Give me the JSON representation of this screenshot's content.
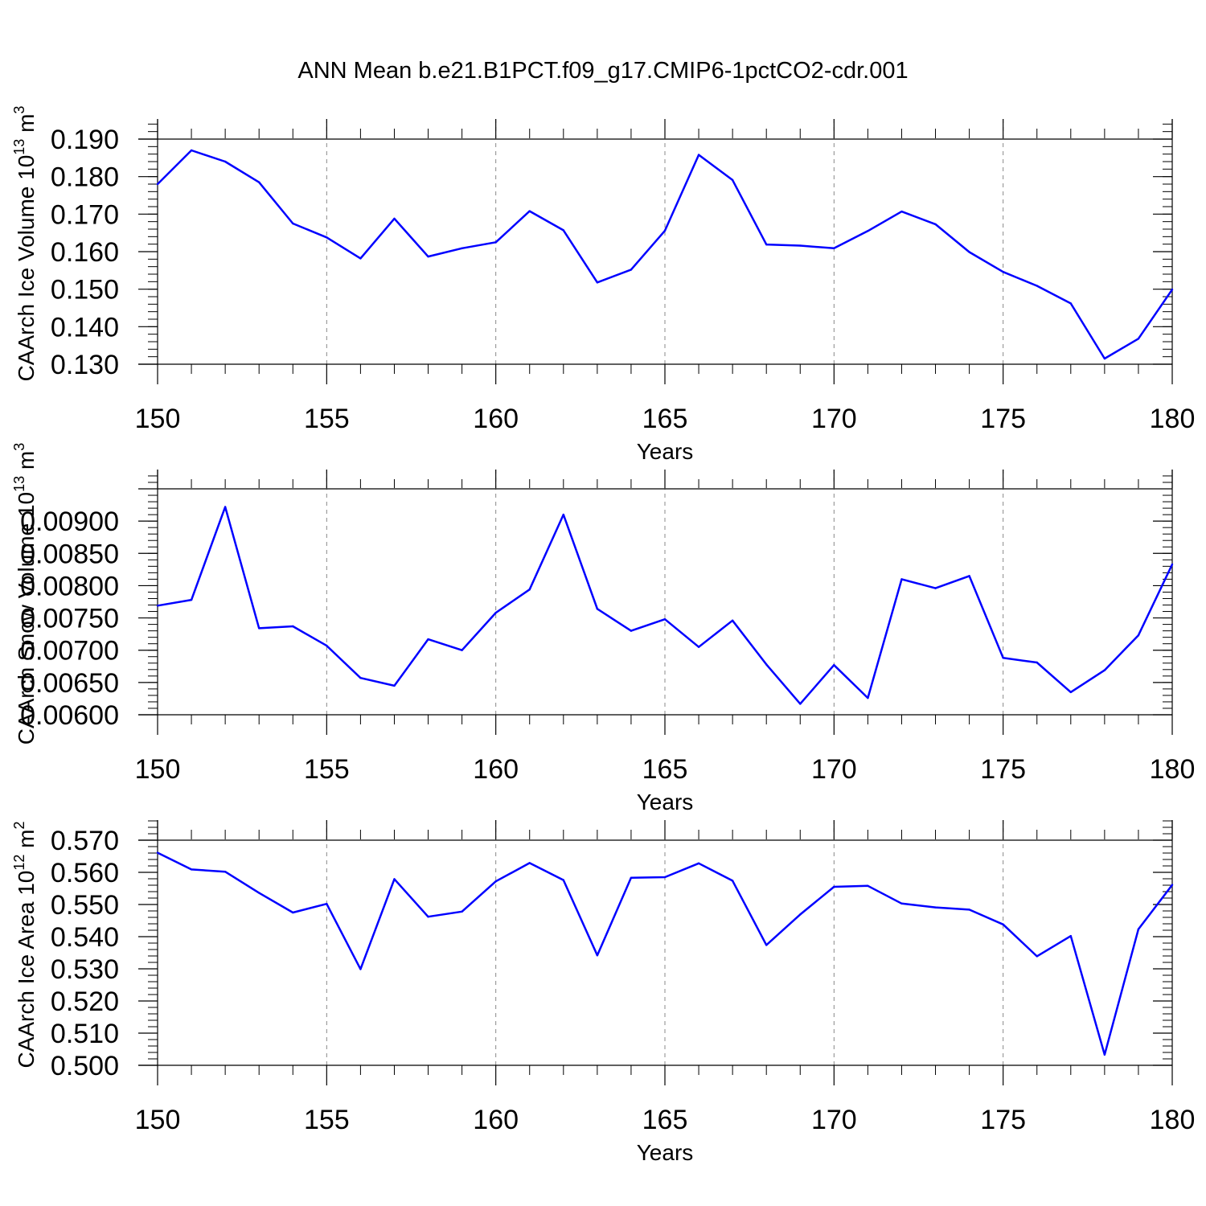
{
  "title": "ANN Mean b.e21.B1PCT.f09_g17.CMIP6-1pctCO2-cdr.001",
  "colors": {
    "line": "#0000ff",
    "axis": "#000000",
    "grid": "#888888"
  },
  "chart_data": [
    {
      "type": "line",
      "xlabel": "Years",
      "ylabel_main": "CAArch Ice Volume 10",
      "ylabel_exp": "13",
      "ylabel_unit": " m",
      "ylabel_unit_exp": "3",
      "xlim": [
        150,
        180
      ],
      "ylim": [
        0.13,
        0.19
      ],
      "x_ticks": [
        150,
        155,
        160,
        165,
        170,
        175,
        180
      ],
      "x_tick_labels": [
        "150",
        "155",
        "160",
        "165",
        "170",
        "175",
        "180"
      ],
      "y_ticks": [
        0.13,
        0.14,
        0.15,
        0.16,
        0.17,
        0.18,
        0.19
      ],
      "y_tick_labels": [
        "0.130",
        "0.140",
        "0.150",
        "0.160",
        "0.170",
        "0.180",
        "0.190"
      ],
      "x": [
        150,
        151,
        152,
        153,
        154,
        155,
        156,
        157,
        158,
        159,
        160,
        161,
        162,
        163,
        164,
        165,
        166,
        167,
        168,
        169,
        170,
        171,
        172,
        173,
        174,
        175,
        176,
        177,
        178,
        179,
        180
      ],
      "values": [
        0.178,
        0.187,
        0.184,
        0.1785,
        0.1675,
        0.1638,
        0.1582,
        0.1688,
        0.1587,
        0.1609,
        0.1625,
        0.1708,
        0.1657,
        0.1518,
        0.1552,
        0.1656,
        0.1858,
        0.1791,
        0.1619,
        0.1616,
        0.1609,
        0.1655,
        0.1707,
        0.1673,
        0.1599,
        0.1546,
        0.1509,
        0.1462,
        0.1315,
        0.1368,
        0.1499
      ]
    },
    {
      "type": "line",
      "xlabel": "Years",
      "ylabel_main": "CAArch Snow Volume 10",
      "ylabel_exp": "13",
      "ylabel_unit": " m",
      "ylabel_unit_exp": "3",
      "xlim": [
        150,
        180
      ],
      "ylim": [
        0.006,
        0.0095
      ],
      "x_ticks": [
        150,
        155,
        160,
        165,
        170,
        175,
        180
      ],
      "x_tick_labels": [
        "150",
        "155",
        "160",
        "165",
        "170",
        "175",
        "180"
      ],
      "y_ticks": [
        0.006,
        0.0065,
        0.007,
        0.0075,
        0.008,
        0.0085,
        0.009
      ],
      "y_tick_labels": [
        "0.00600",
        "0.00650",
        "0.00700",
        "0.00750",
        "0.00800",
        "0.00850",
        "0.00900"
      ],
      "x": [
        150,
        151,
        152,
        153,
        154,
        155,
        156,
        157,
        158,
        159,
        160,
        161,
        162,
        163,
        164,
        165,
        166,
        167,
        168,
        169,
        170,
        171,
        172,
        173,
        174,
        175,
        176,
        177,
        178,
        179,
        180
      ],
      "values": [
        0.00769,
        0.00778,
        0.00922,
        0.00734,
        0.00737,
        0.00707,
        0.00657,
        0.00645,
        0.00717,
        0.007,
        0.00758,
        0.00794,
        0.0091,
        0.00764,
        0.0073,
        0.00748,
        0.00705,
        0.00746,
        0.00678,
        0.00617,
        0.00677,
        0.00626,
        0.0081,
        0.00796,
        0.00815,
        0.00688,
        0.00681,
        0.00635,
        0.00669,
        0.00723,
        0.00833
      ]
    },
    {
      "type": "line",
      "xlabel": "Years",
      "ylabel_main": "CAArch Ice Area 10",
      "ylabel_exp": "12",
      "ylabel_unit": " m",
      "ylabel_unit_exp": "2",
      "xlim": [
        150,
        180
      ],
      "ylim": [
        0.5,
        0.57
      ],
      "x_ticks": [
        150,
        155,
        160,
        165,
        170,
        175,
        180
      ],
      "x_tick_labels": [
        "150",
        "155",
        "160",
        "165",
        "170",
        "175",
        "180"
      ],
      "y_ticks": [
        0.5,
        0.51,
        0.52,
        0.53,
        0.54,
        0.55,
        0.56,
        0.57
      ],
      "y_tick_labels": [
        "0.500",
        "0.510",
        "0.520",
        "0.530",
        "0.540",
        "0.550",
        "0.560",
        "0.570"
      ],
      "x": [
        150,
        151,
        152,
        153,
        154,
        155,
        156,
        157,
        158,
        159,
        160,
        161,
        162,
        163,
        164,
        165,
        166,
        167,
        168,
        169,
        170,
        171,
        172,
        173,
        174,
        175,
        176,
        177,
        178,
        179,
        180
      ],
      "values": [
        0.5661,
        0.5609,
        0.5602,
        0.5536,
        0.5475,
        0.5502,
        0.5299,
        0.5579,
        0.5462,
        0.5478,
        0.5572,
        0.5629,
        0.5576,
        0.5342,
        0.5583,
        0.5585,
        0.5628,
        0.5574,
        0.5374,
        0.5469,
        0.5555,
        0.5558,
        0.5503,
        0.5491,
        0.5484,
        0.5438,
        0.5339,
        0.5402,
        0.5033,
        0.5423,
        0.5561
      ]
    }
  ]
}
